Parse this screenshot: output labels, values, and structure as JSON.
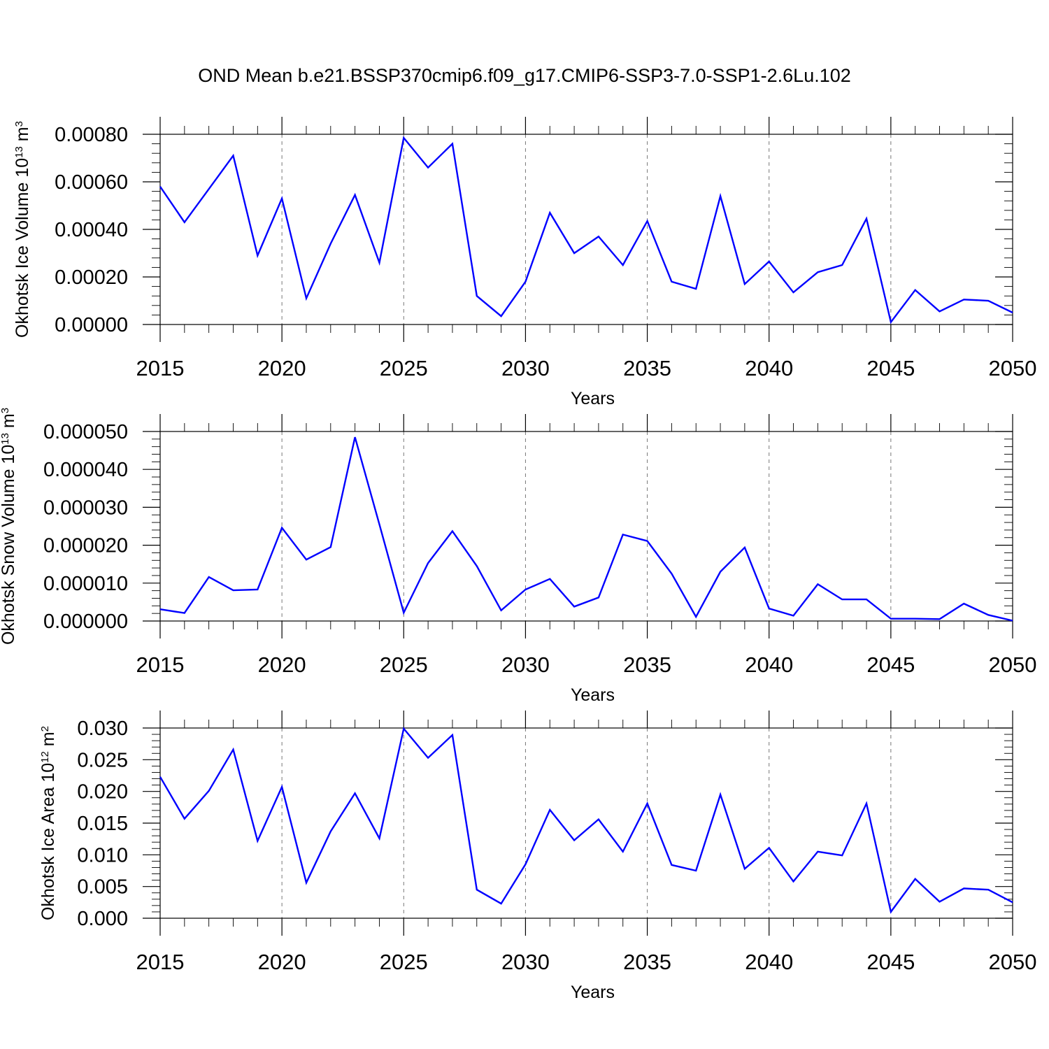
{
  "title": "OND Mean b.e21.BSSP370cmip6.f09_g17.CMIP6-SSP3-7.0-SSP1-2.6Lu.102",
  "colors": {
    "line": "#0000ff",
    "frame": "#000000",
    "grid": "#777777"
  },
  "chart_data": [
    {
      "type": "line",
      "xlabel": "Years",
      "ylabel": "Okhotsk Ice Volume 10",
      "ylabel_exp": "13",
      "ylabel_unit": " m",
      "ylabel_unit_exp": "3",
      "xlim": [
        2015,
        2050
      ],
      "ylim": [
        0,
        0.0008
      ],
      "xticks": [
        2015,
        2020,
        2025,
        2030,
        2035,
        2040,
        2045,
        2050
      ],
      "xtick_labels": [
        "2015",
        "2020",
        "2025",
        "2030",
        "2035",
        "2040",
        "2045",
        "2050"
      ],
      "yticks": [
        0,
        0.0002,
        0.0004,
        0.0006,
        0.0008
      ],
      "ytick_labels": [
        "0.00000",
        "0.00020",
        "0.00040",
        "0.00060",
        "0.00080"
      ],
      "grid": "vertical dashed at major x ticks",
      "x": [
        2015,
        2016,
        2017,
        2018,
        2019,
        2020,
        2021,
        2022,
        2023,
        2024,
        2025,
        2026,
        2027,
        2028,
        2029,
        2030,
        2031,
        2032,
        2033,
        2034,
        2035,
        2036,
        2037,
        2038,
        2039,
        2040,
        2041,
        2042,
        2043,
        2044,
        2045,
        2046,
        2047,
        2048,
        2049,
        2050
      ],
      "y": [
        0.00058,
        0.00043,
        0.00057,
        0.00071,
        0.00029,
        0.00053,
        0.00011,
        0.00034,
        0.000545,
        0.00026,
        0.000785,
        0.00066,
        0.00076,
        0.00012,
        3.5e-05,
        0.00018,
        0.00047,
        0.0003,
        0.00037,
        0.00025,
        0.000435,
        0.00018,
        0.00015,
        0.00054,
        0.00017,
        0.000265,
        0.000135,
        0.00022,
        0.00025,
        0.000445,
        1e-05,
        0.000145,
        5.5e-05,
        0.000105,
        0.0001,
        5e-05
      ]
    },
    {
      "type": "line",
      "xlabel": "Years",
      "ylabel": "Okhotsk Snow Volume 10",
      "ylabel_exp": "13",
      "ylabel_unit": " m",
      "ylabel_unit_exp": "3",
      "xlim": [
        2015,
        2050
      ],
      "ylim": [
        0,
        5e-05
      ],
      "xticks": [
        2015,
        2020,
        2025,
        2030,
        2035,
        2040,
        2045,
        2050
      ],
      "xtick_labels": [
        "2015",
        "2020",
        "2025",
        "2030",
        "2035",
        "2040",
        "2045",
        "2050"
      ],
      "yticks": [
        0,
        1e-05,
        2e-05,
        3e-05,
        4e-05,
        5e-05
      ],
      "ytick_labels": [
        "0.000000",
        "0.000010",
        "0.000020",
        "0.000030",
        "0.000040",
        "0.000050"
      ],
      "grid": "vertical dashed at major x ticks",
      "x": [
        2015,
        2016,
        2017,
        2018,
        2019,
        2020,
        2021,
        2022,
        2023,
        2024,
        2025,
        2026,
        2027,
        2028,
        2029,
        2030,
        2031,
        2032,
        2033,
        2034,
        2035,
        2036,
        2037,
        2038,
        2039,
        2040,
        2041,
        2042,
        2043,
        2044,
        2045,
        2046,
        2047,
        2048,
        2049,
        2050
      ],
      "y": [
        3.1e-06,
        2.1e-06,
        1.16e-05,
        8.1e-06,
        8.3e-06,
        2.46e-05,
        1.62e-05,
        1.95e-05,
        4.85e-05,
        2.55e-05,
        2.2e-06,
        1.53e-05,
        2.37e-05,
        1.45e-05,
        2.8e-06,
        8.3e-06,
        1.11e-05,
        3.8e-06,
        6.2e-06,
        2.28e-05,
        2.11e-05,
        1.25e-05,
        1.1e-06,
        1.3e-05,
        1.94e-05,
        3.3e-06,
        1.4e-06,
        9.7e-06,
        5.7e-06,
        5.7e-06,
        6e-07,
        6e-07,
        5e-07,
        4.6e-06,
        1.6e-06,
        1e-07
      ]
    },
    {
      "type": "line",
      "xlabel": "Years",
      "ylabel": "Okhotsk Ice Area 10",
      "ylabel_exp": "12",
      "ylabel_unit": " m",
      "ylabel_unit_exp": "2",
      "xlim": [
        2015,
        2050
      ],
      "ylim": [
        0,
        0.03
      ],
      "xticks": [
        2015,
        2020,
        2025,
        2030,
        2035,
        2040,
        2045,
        2050
      ],
      "xtick_labels": [
        "2015",
        "2020",
        "2025",
        "2030",
        "2035",
        "2040",
        "2045",
        "2050"
      ],
      "yticks": [
        0,
        0.005,
        0.01,
        0.015,
        0.02,
        0.025,
        0.03
      ],
      "ytick_labels": [
        "0.000",
        "0.005",
        "0.010",
        "0.015",
        "0.020",
        "0.025",
        "0.030"
      ],
      "grid": "vertical dashed at major x ticks",
      "x": [
        2015,
        2016,
        2017,
        2018,
        2019,
        2020,
        2021,
        2022,
        2023,
        2024,
        2025,
        2026,
        2027,
        2028,
        2029,
        2030,
        2031,
        2032,
        2033,
        2034,
        2035,
        2036,
        2037,
        2038,
        2039,
        2040,
        2041,
        2042,
        2043,
        2044,
        2045,
        2046,
        2047,
        2048,
        2049,
        2050
      ],
      "y": [
        0.0223,
        0.0157,
        0.0201,
        0.0266,
        0.0122,
        0.0207,
        0.0056,
        0.0137,
        0.0197,
        0.0126,
        0.0299,
        0.0253,
        0.0289,
        0.0045,
        0.0023,
        0.0085,
        0.0171,
        0.0123,
        0.0156,
        0.0105,
        0.0181,
        0.0084,
        0.0075,
        0.0195,
        0.0078,
        0.0111,
        0.0058,
        0.0105,
        0.0099,
        0.0181,
        0.001,
        0.0062,
        0.0026,
        0.0047,
        0.0045,
        0.0025
      ]
    }
  ]
}
